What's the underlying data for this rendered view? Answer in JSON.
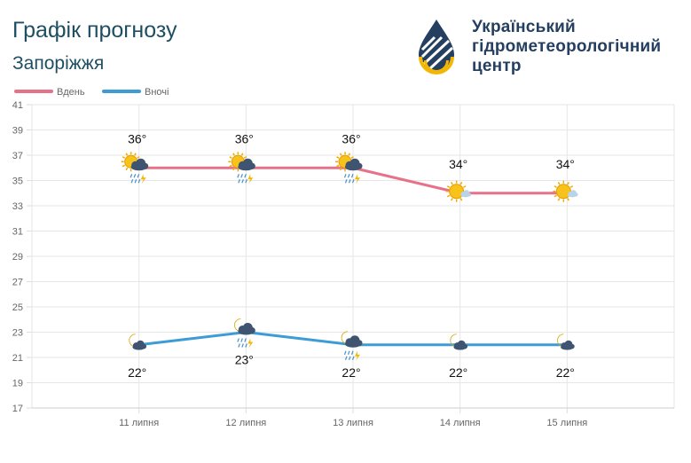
{
  "header": {
    "title": "Графік прогнозу",
    "city": "Запоріжжя"
  },
  "org": {
    "name_lines": [
      "Український",
      "гідрометеорологічний",
      "центр"
    ]
  },
  "chart_data": {
    "type": "line",
    "categories": [
      "11 липня",
      "12 липня",
      "13 липня",
      "14 липня",
      "15 липня"
    ],
    "ylim": [
      17,
      41
    ],
    "yticks": [
      17,
      19,
      21,
      23,
      25,
      27,
      29,
      31,
      33,
      35,
      37,
      39,
      41
    ],
    "grid": true,
    "legend_position": "top-left",
    "series": [
      {
        "name": "Вдень",
        "color": "#e8718a",
        "values": [
          36,
          36,
          36,
          34,
          34
        ],
        "labels": [
          "36°",
          "36°",
          "36°",
          "34°",
          "34°"
        ],
        "icons": [
          "partly-cloudy-thunder-rain-icon",
          "partly-cloudy-thunder-rain-icon",
          "partly-cloudy-thunder-rain-icon",
          "sun-small-cloud-icon",
          "sun-small-cloud-icon"
        ]
      },
      {
        "name": "Вночі",
        "color": "#3d9bd6",
        "values": [
          22,
          23,
          22,
          22,
          22
        ],
        "labels": [
          "22°",
          "23°",
          "22°",
          "22°",
          "22°"
        ],
        "icons": [
          "moon-cloud-icon",
          "moon-cloud-thunder-rain-icon",
          "moon-cloud-thunder-rain-icon",
          "moon-cloud-icon",
          "moon-cloud-icon"
        ]
      }
    ]
  }
}
